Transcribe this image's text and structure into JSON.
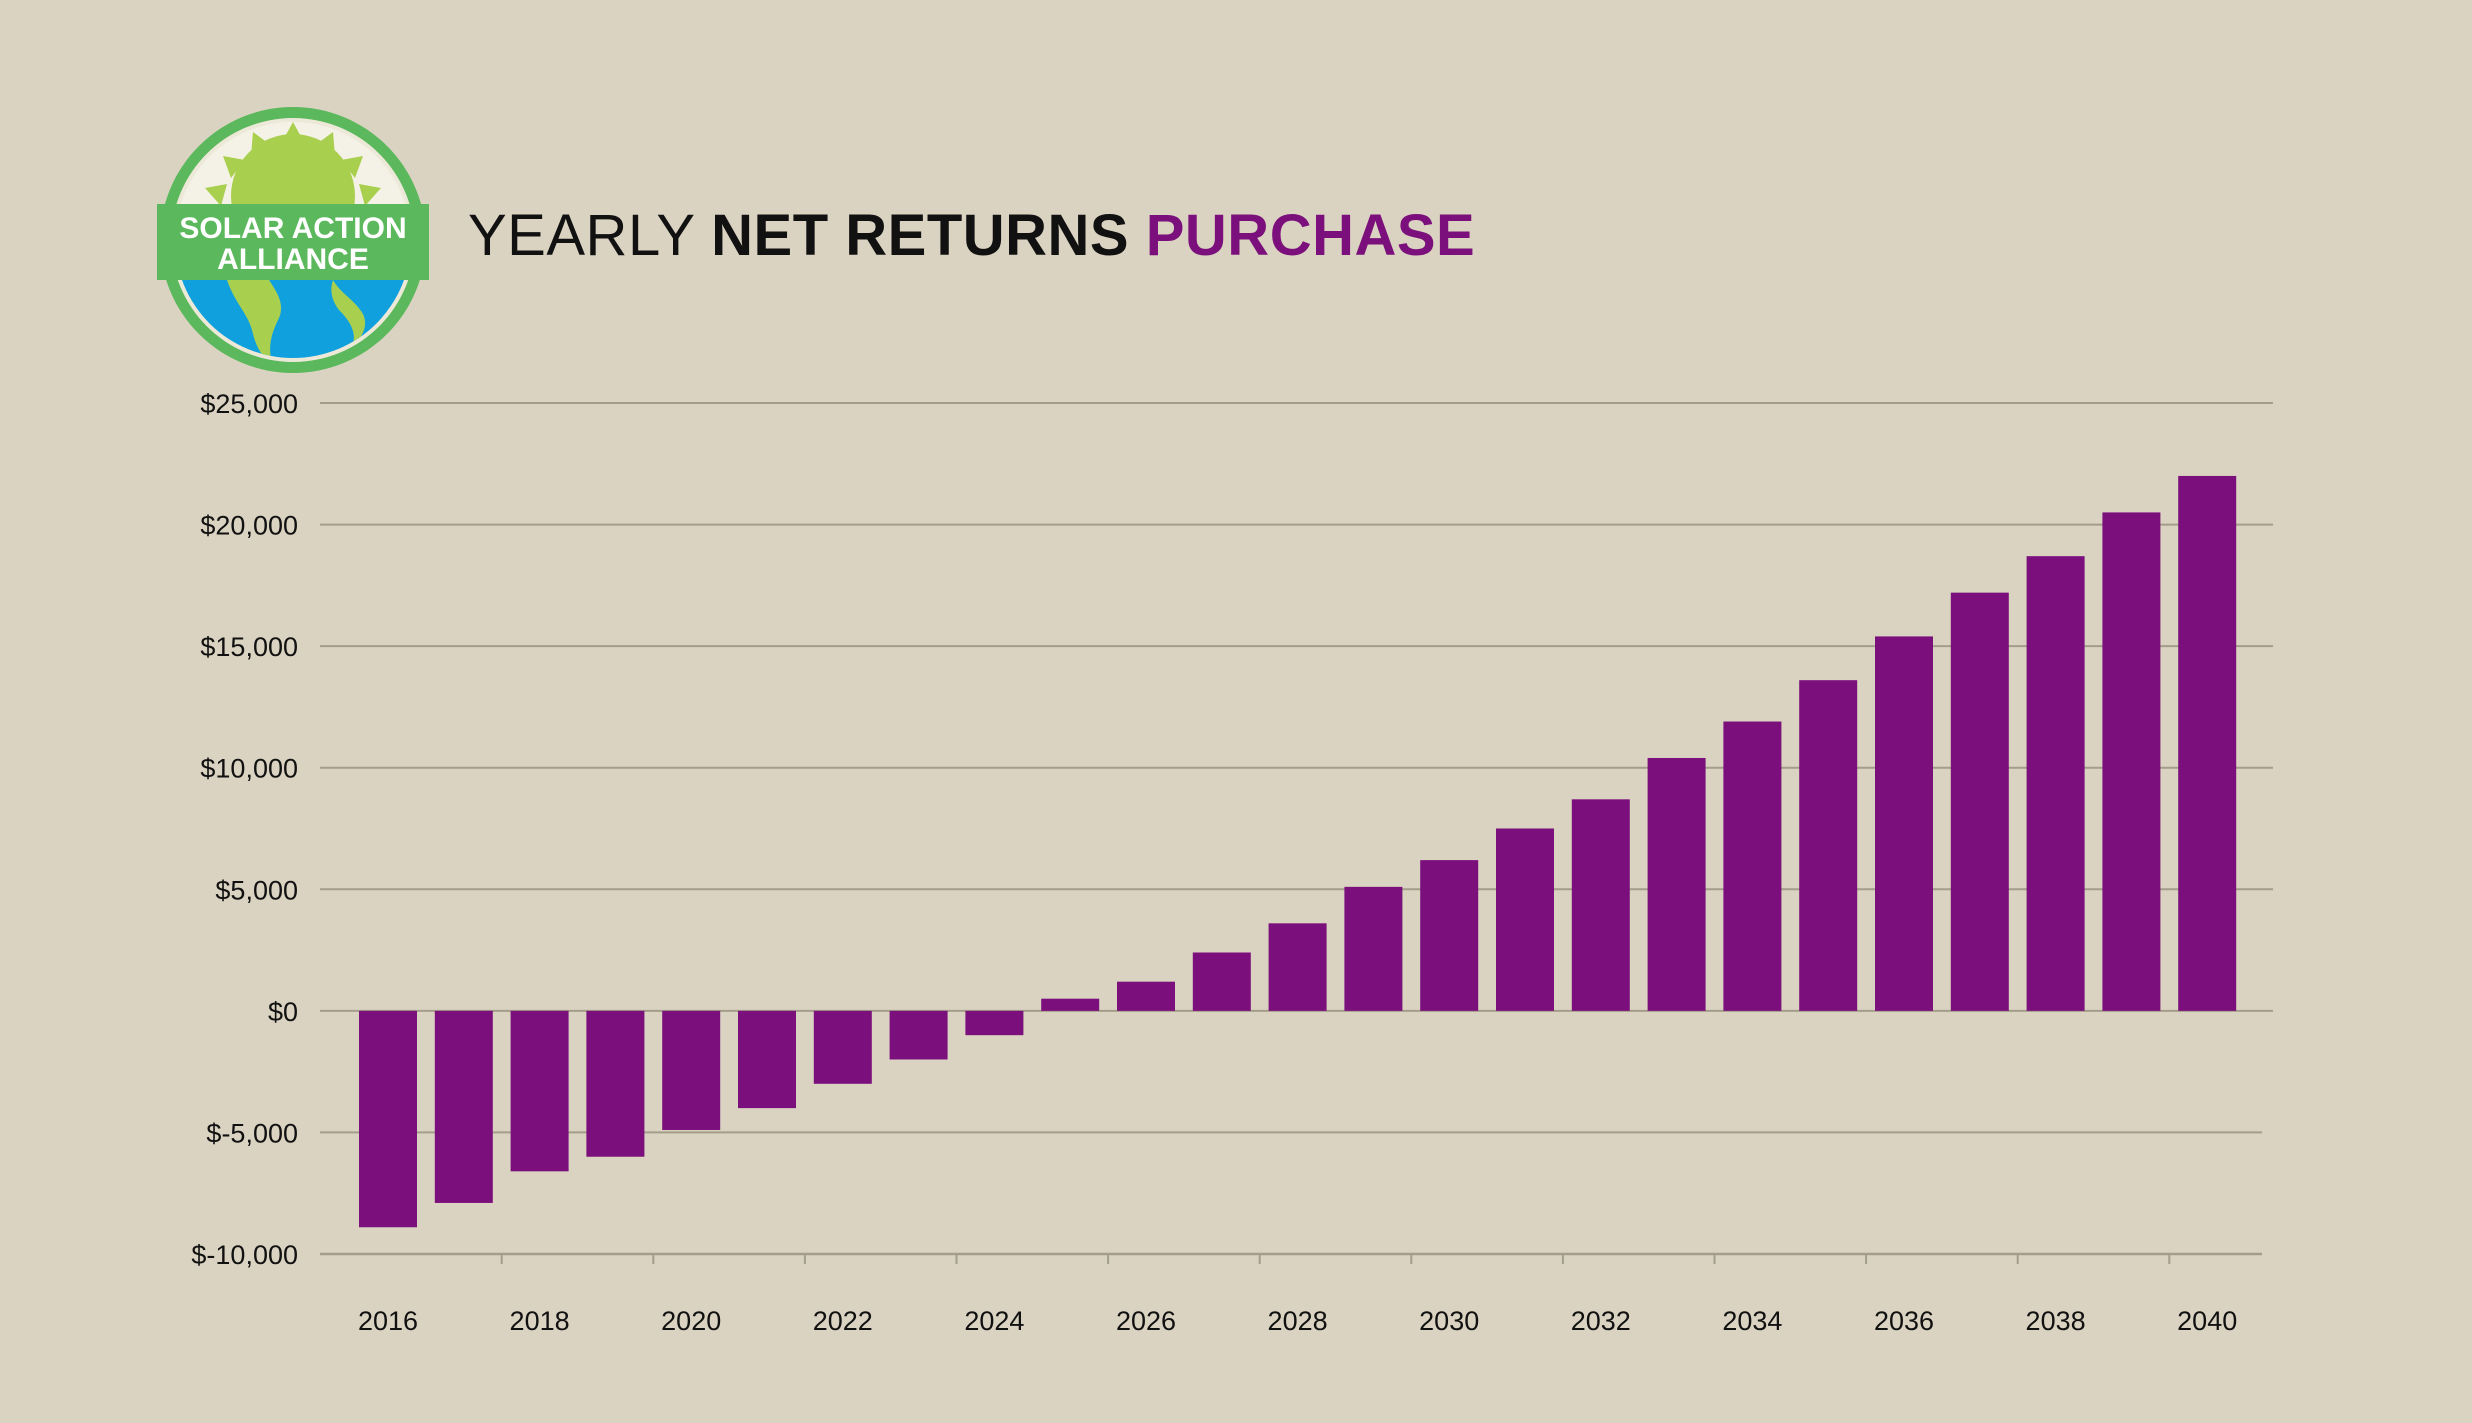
{
  "logo": {
    "line1": "SOLAR ACTION",
    "line2": "ALLIANCE"
  },
  "title": {
    "part1": "YEARLY ",
    "part2": "NET RETURNS ",
    "part3": "PURCHASE"
  },
  "colors": {
    "background": "#dad3c1",
    "bar": "#7b0f7c",
    "gridline": "#a39d8a",
    "accent_title": "#7b0f7c",
    "logo_green": "#5cb85c",
    "logo_sun": "#a9cf4f",
    "logo_water": "#0fa0dd"
  },
  "chart_data": {
    "type": "bar",
    "title": "YEARLY NET RETURNS PURCHASE",
    "xlabel": "",
    "ylabel": "",
    "ylim": [
      -10000,
      25000
    ],
    "yticks": [
      25000,
      20000,
      15000,
      10000,
      5000,
      0,
      -5000,
      -10000
    ],
    "ytick_labels": [
      "$25,000",
      "$20,000",
      "$15,000",
      "$10,000",
      "$5,000",
      "$0",
      "$-5,000",
      "$-10,000"
    ],
    "categories": [
      2016,
      2017,
      2018,
      2019,
      2020,
      2021,
      2022,
      2023,
      2024,
      2025,
      2026,
      2027,
      2028,
      2029,
      2030,
      2031,
      2032,
      2033,
      2034,
      2035,
      2036,
      2037,
      2038,
      2039,
      2040
    ],
    "xtick_labels": [
      "2016",
      "2018",
      "2020",
      "2022",
      "2024",
      "2026",
      "2028",
      "2030",
      "2032",
      "2034",
      "2036",
      "2038",
      "2040"
    ],
    "values": [
      -8900,
      -7900,
      -6600,
      -6000,
      -4900,
      -4000,
      -3000,
      -2000,
      -1000,
      500,
      1200,
      2400,
      3600,
      5100,
      6200,
      7500,
      8700,
      10400,
      11900,
      13600,
      15400,
      17200,
      18700,
      20500,
      22000
    ],
    "grid": true,
    "legend": "none"
  }
}
